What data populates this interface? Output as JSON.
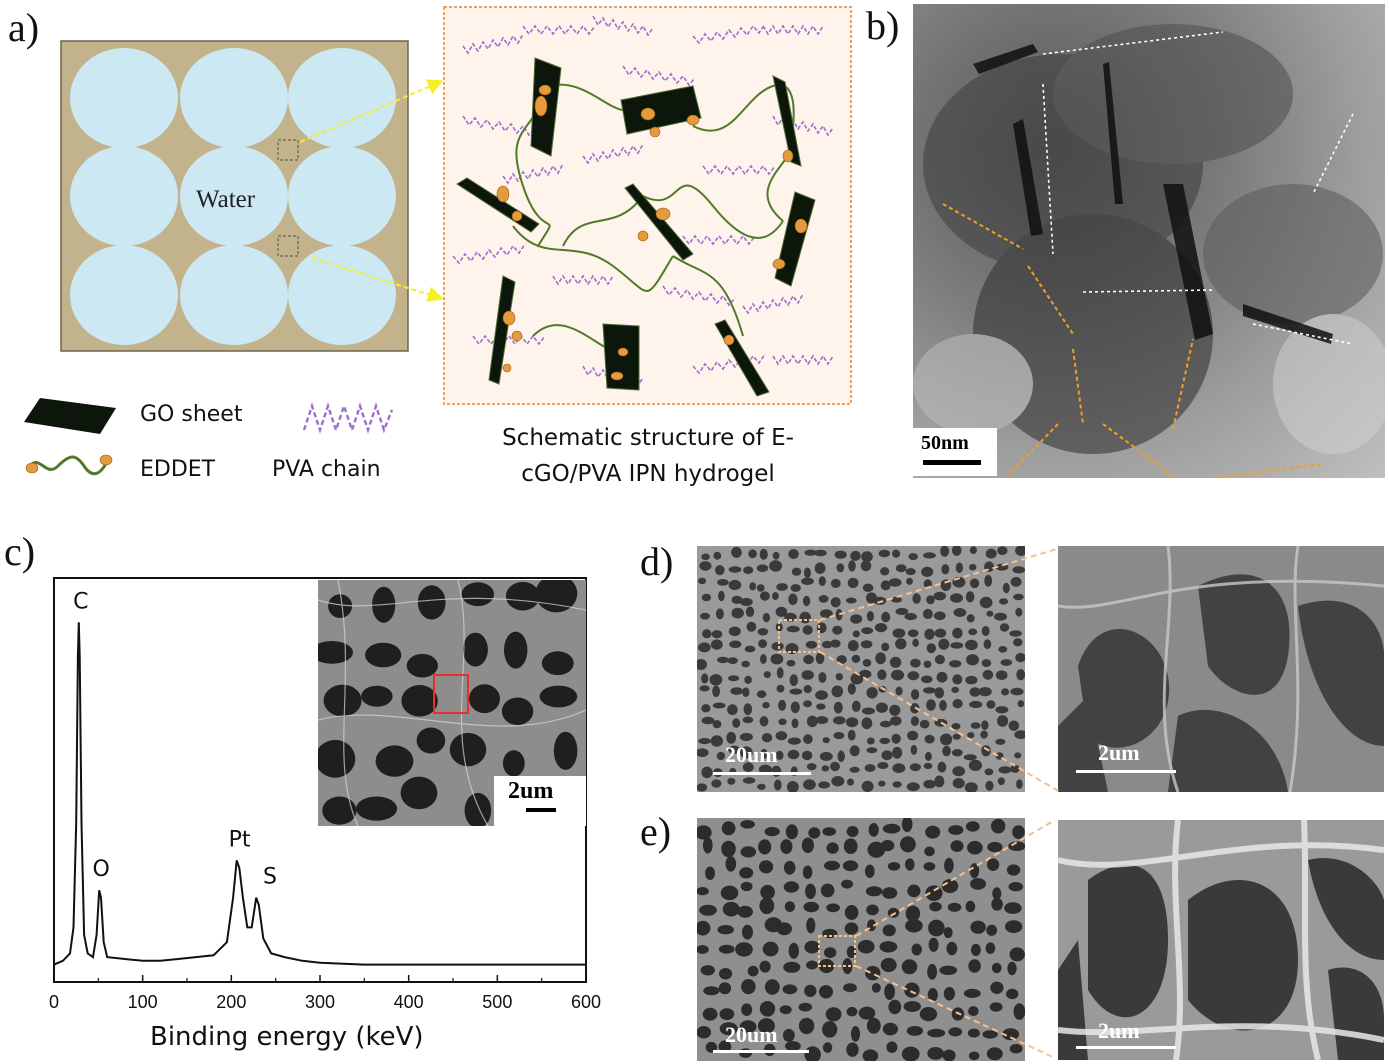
{
  "panels": {
    "a": {
      "label": "a)"
    },
    "b": {
      "label": "b)"
    },
    "c": {
      "label": "c)"
    },
    "d": {
      "label": "d)"
    },
    "e": {
      "label": "e)"
    }
  },
  "schematic": {
    "water_label": "Water",
    "caption_line1": "Schematic structure of  E-",
    "caption_line2": "cGO/PVA IPN hydrogel",
    "legend": {
      "go_sheet": "GO sheet",
      "eddet": "EDDET",
      "pva_chain": "PVA chain"
    },
    "colors": {
      "matrix": "#c3b38d",
      "water": "#cbe8f3",
      "go_sheet": "#0d160a",
      "eddet_chain": "#4f7a2a",
      "eddet_node": "#e69a3c",
      "pva_chain": "#9b6fcf",
      "arrow": "#f5ee2a",
      "box_border": "#f0a05a",
      "box_fill": "#fff4ec"
    }
  },
  "tem": {
    "scalebar": "50nm",
    "arrow_colors": {
      "white": "#ffffff",
      "orange": "#f0a020"
    }
  },
  "sem": {
    "c_inset_scalebar": "2um",
    "d_left_scalebar": "20um",
    "d_right_scalebar": "2um",
    "e_left_scalebar": "20um",
    "e_right_scalebar": "2um",
    "zoom_line_color": "#f7c08d",
    "roi_box_color": "#e53030"
  },
  "chart_data": {
    "type": "line",
    "title": "",
    "xlabel": "Binding energy (keV)",
    "ylabel": "",
    "xlim": [
      0,
      600
    ],
    "ylim": [
      0,
      1
    ],
    "xticks": [
      "0",
      "100",
      "200",
      "300",
      "400",
      "500",
      "600"
    ],
    "grid": false,
    "series": [
      {
        "values": [
          [
            0,
            0.02
          ],
          [
            10,
            0.03
          ],
          [
            18,
            0.05
          ],
          [
            22,
            0.12
          ],
          [
            25,
            0.4
          ],
          [
            27,
            0.85
          ],
          [
            28,
            0.94
          ],
          [
            29,
            0.85
          ],
          [
            31,
            0.4
          ],
          [
            34,
            0.1
          ],
          [
            38,
            0.05
          ],
          [
            44,
            0.04
          ],
          [
            48,
            0.1
          ],
          [
            51,
            0.22
          ],
          [
            53,
            0.2
          ],
          [
            56,
            0.08
          ],
          [
            60,
            0.04
          ],
          [
            80,
            0.035
          ],
          [
            100,
            0.03
          ],
          [
            120,
            0.03
          ],
          [
            140,
            0.035
          ],
          [
            160,
            0.04
          ],
          [
            180,
            0.045
          ],
          [
            195,
            0.08
          ],
          [
            202,
            0.2
          ],
          [
            206,
            0.3
          ],
          [
            209,
            0.28
          ],
          [
            213,
            0.2
          ],
          [
            218,
            0.12
          ],
          [
            223,
            0.12
          ],
          [
            228,
            0.2
          ],
          [
            231,
            0.18
          ],
          [
            236,
            0.09
          ],
          [
            245,
            0.05
          ],
          [
            260,
            0.04
          ],
          [
            280,
            0.03
          ],
          [
            300,
            0.025
          ],
          [
            350,
            0.02
          ],
          [
            400,
            0.02
          ],
          [
            450,
            0.02
          ],
          [
            500,
            0.02
          ],
          [
            550,
            0.02
          ],
          [
            600,
            0.02
          ]
        ]
      }
    ],
    "annotations": [
      {
        "text": "C",
        "x": 28,
        "y": 0.94
      },
      {
        "text": "O",
        "x": 51,
        "y": 0.22
      },
      {
        "text": "Pt",
        "x": 207,
        "y": 0.3
      },
      {
        "text": "S",
        "x": 230,
        "y": 0.2
      }
    ]
  }
}
